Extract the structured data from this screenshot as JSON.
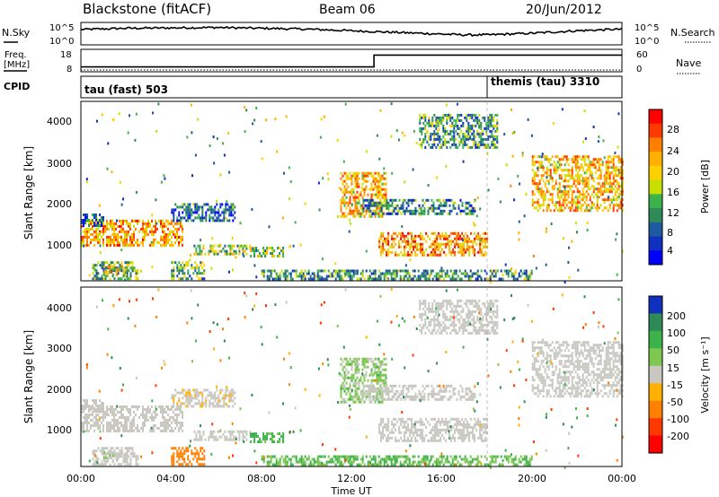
{
  "header": {
    "title": "Blackstone (fitACF)",
    "beam": "Beam 06",
    "date": "20/Jun/2012"
  },
  "noise_panel": {
    "left_label": "N.Sky",
    "right_label": "N.Search",
    "left_ticks": [
      "10^5",
      "10^0"
    ],
    "right_ticks": [
      "10^5",
      "10^0"
    ]
  },
  "freq_panel": {
    "left_label_top": "Freq.",
    "left_label_unit": "[MHz]",
    "left_ticks": [
      "18",
      "8"
    ],
    "right_label": "Nave",
    "right_ticks": [
      "60",
      "0"
    ]
  },
  "cpid_panel": {
    "label": "CPID",
    "modes": [
      {
        "text": "tau (fast) 503",
        "start_hour": 0
      },
      {
        "text": "themis (tau) 3310",
        "start_hour": 18
      }
    ]
  },
  "power_colorbar": {
    "label": "Power [dB]",
    "ticks": [
      "28",
      "24",
      "20",
      "16",
      "12",
      "8",
      "4"
    ],
    "colors": [
      "#ff0000",
      "#ff3a00",
      "#ff8000",
      "#ffb000",
      "#ffd000",
      "#c8e000",
      "#3cb44b",
      "#2e8b57",
      "#1e5aa0",
      "#1030c0",
      "#0000ff"
    ]
  },
  "velocity_colorbar": {
    "label": "Velocity [m s⁻¹]",
    "ticks": [
      "200",
      "100",
      "50",
      "15",
      "-15",
      "-50",
      "-100",
      "-200"
    ],
    "colors": [
      "#1030c0",
      "#2e8b57",
      "#3cb44b",
      "#7ec850",
      "#c8c8c0",
      "#ffb000",
      "#ff8000",
      "#ff3a00",
      "#ff0000"
    ]
  },
  "axes": {
    "ylabel": "Slant Range [km]",
    "xlabel": "Time UT",
    "x_ticks": [
      "00:00",
      "04:00",
      "08:00",
      "12:00",
      "16:00",
      "20:00",
      "00:00"
    ],
    "y_ticks": [
      "1000",
      "2000",
      "3000",
      "4000"
    ]
  },
  "chart_data": {
    "type": "heatmap",
    "x_range_hours": [
      0,
      24
    ],
    "y_range_km": [
      180,
      4500
    ],
    "power_range_db": [
      0,
      30
    ],
    "velocity_range_ms": [
      -250,
      250
    ],
    "noise_sky_log": [
      [
        0,
        3.5
      ],
      [
        2,
        3.8
      ],
      [
        4,
        3.9
      ],
      [
        6,
        4.0
      ],
      [
        8,
        3.8
      ],
      [
        10,
        3.6
      ],
      [
        12,
        3.2
      ],
      [
        14,
        2.8
      ],
      [
        16,
        2.4
      ],
      [
        17,
        2.2
      ],
      [
        18,
        2.2
      ],
      [
        20,
        2.6
      ],
      [
        22,
        3.2
      ],
      [
        24,
        3.6
      ]
    ],
    "frequency_mhz": [
      [
        0,
        10
      ],
      [
        13,
        10
      ],
      [
        13,
        16
      ],
      [
        24,
        16
      ]
    ],
    "echo_regions": [
      {
        "t0": 0.0,
        "t1": 4.5,
        "r0": 1050,
        "r1": 1650,
        "power": 21,
        "velocity": 0
      },
      {
        "t0": 0.0,
        "t1": 1.0,
        "r0": 1500,
        "r1": 1800,
        "power": 8,
        "velocity": 0
      },
      {
        "t0": 4.0,
        "t1": 6.8,
        "r0": 1650,
        "r1": 2050,
        "power": 7,
        "velocity": -5
      },
      {
        "t0": 0.5,
        "t1": 2.5,
        "r0": 250,
        "r1": 650,
        "power": 11,
        "velocity": 0
      },
      {
        "t0": 1.0,
        "t1": 2.0,
        "r0": 350,
        "r1": 550,
        "power": 18,
        "velocity": 5
      },
      {
        "t0": 5.0,
        "t1": 7.5,
        "r0": 800,
        "r1": 1050,
        "power": 14,
        "velocity": 0
      },
      {
        "t0": 7.5,
        "t1": 9.0,
        "r0": 750,
        "r1": 1000,
        "power": 14,
        "velocity": 40
      },
      {
        "t0": 11.5,
        "t1": 13.5,
        "r0": 1700,
        "r1": 2800,
        "power": 20,
        "velocity": 20
      },
      {
        "t0": 13.2,
        "t1": 18.0,
        "r0": 800,
        "r1": 1350,
        "power": 22,
        "velocity": 0
      },
      {
        "t0": 12.5,
        "t1": 17.5,
        "r0": 1800,
        "r1": 2150,
        "power": 9,
        "velocity": 0
      },
      {
        "t0": 15.0,
        "t1": 18.5,
        "r0": 3400,
        "r1": 4200,
        "power": 10,
        "velocity": 0
      },
      {
        "t0": 20.0,
        "t1": 24.0,
        "r0": 1900,
        "r1": 3200,
        "power": 20,
        "velocity": 0
      },
      {
        "t0": 8.0,
        "t1": 20.0,
        "r0": 200,
        "r1": 450,
        "power": 10,
        "velocity": 30
      },
      {
        "t0": 4.0,
        "t1": 5.5,
        "r0": 200,
        "r1": 650,
        "power": 12,
        "velocity": -80
      }
    ]
  }
}
